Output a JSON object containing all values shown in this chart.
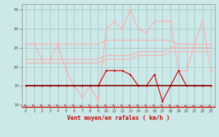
{
  "x": [
    0,
    1,
    2,
    3,
    4,
    5,
    6,
    7,
    8,
    9,
    10,
    11,
    12,
    13,
    14,
    15,
    16,
    17,
    18,
    19,
    20,
    21,
    22,
    23
  ],
  "line_rafales": [
    26,
    26,
    22,
    22,
    26,
    19,
    15,
    12,
    15,
    11,
    30,
    32,
    30,
    35,
    30,
    29,
    32,
    32,
    32,
    19,
    19,
    26,
    32,
    19
  ],
  "line_moy1": [
    26,
    26,
    26,
    26,
    26,
    26,
    26,
    26,
    26,
    26,
    27,
    27,
    27,
    27,
    27,
    27,
    27,
    27,
    27,
    26,
    26,
    26,
    26,
    26
  ],
  "line_moy2": [
    22,
    22,
    22,
    22,
    22,
    22,
    22,
    22,
    22,
    22,
    23,
    23,
    23,
    23,
    24,
    24,
    24,
    24,
    25,
    25,
    25,
    25,
    25,
    25
  ],
  "line_moy3": [
    21,
    21,
    21,
    21,
    21,
    21,
    21,
    21,
    21,
    21,
    22,
    22,
    22,
    22,
    23,
    23,
    23,
    23,
    24,
    24,
    24,
    24,
    24,
    24
  ],
  "line_min": [
    15,
    15,
    15,
    15,
    15,
    15,
    15,
    15,
    15,
    15,
    19,
    19,
    19,
    18,
    15,
    15,
    18,
    11,
    15,
    19,
    15,
    15,
    15,
    15
  ],
  "line_flat": [
    15,
    15,
    15,
    15,
    15,
    15,
    15,
    15,
    15,
    15,
    15,
    15,
    15,
    15,
    15,
    15,
    15,
    15,
    15,
    15,
    15,
    15,
    15,
    15
  ],
  "arrow_angles": [
    0,
    0,
    0,
    0,
    0,
    0,
    0,
    45,
    0,
    0,
    0,
    0,
    0,
    0,
    0,
    0,
    0,
    0,
    0,
    45,
    45,
    45,
    45,
    45
  ],
  "background_color": "#cce8e8",
  "grid_color": "#aacccc",
  "color_rafales": "#ffaaaa",
  "color_moy": "#ffaaaa",
  "color_min": "#cc0000",
  "color_flat": "#880000",
  "color_arrow": "#cc2222",
  "xlabel": "Vent moyen/en rafales ( km/h )",
  "ylim": [
    9.5,
    36.5
  ],
  "yticks": [
    10,
    15,
    20,
    25,
    30,
    35
  ],
  "xticks": [
    0,
    1,
    2,
    3,
    4,
    5,
    6,
    7,
    8,
    9,
    10,
    11,
    12,
    13,
    14,
    15,
    16,
    17,
    18,
    19,
    20,
    21,
    22,
    23
  ]
}
